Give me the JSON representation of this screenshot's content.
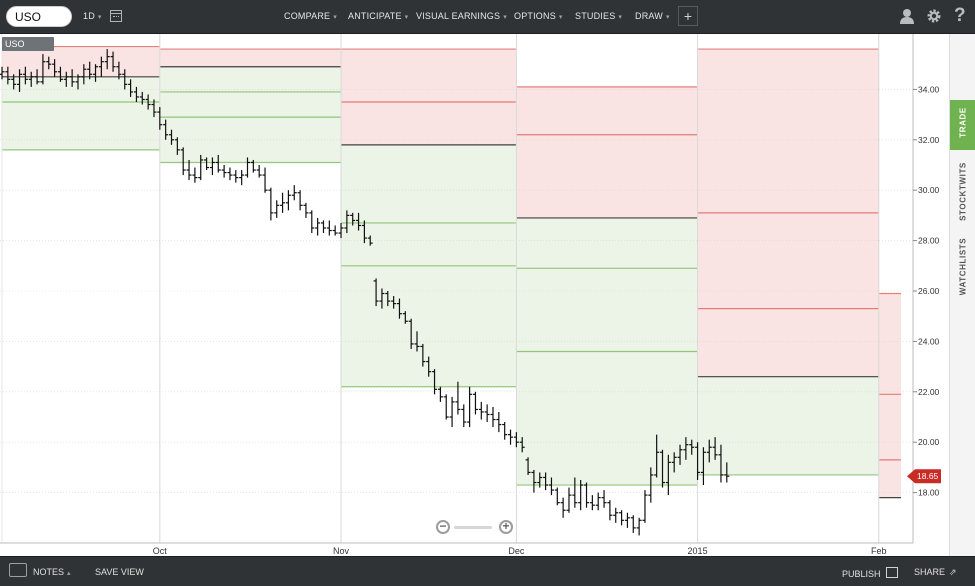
{
  "toolbar": {
    "symbol": "USO",
    "interval": "1D",
    "menu": [
      "COMPARE",
      "ANTICIPATE",
      "VISUAL EARNINGS",
      "OPTIONS",
      "STUDIES",
      "DRAW"
    ]
  },
  "sidebar": {
    "tabs": [
      "TRADE",
      "STOCKTWITS",
      "WATCHLISTS"
    ]
  },
  "bottombar": {
    "notes": "NOTES",
    "save_view": "SAVE VIEW",
    "publish": "PUBLISH",
    "share": "SHARE"
  },
  "colors": {
    "accent_green": "#6fb24f",
    "price_tag": "#c92b25",
    "bearish": "#d9534f",
    "bullish": "#6fb24f"
  },
  "chart_data": {
    "type": "ohlc",
    "symbol_label": "USO",
    "last_price": "18.65",
    "y_ticks": [
      "18.00",
      "20.00",
      "22.00",
      "24.00",
      "26.00",
      "28.00",
      "30.00",
      "32.00",
      "34.00"
    ],
    "ylim": [
      16.0,
      36.0
    ],
    "x_ticks": [
      {
        "label": "Oct",
        "day": 18
      },
      {
        "label": "Nov",
        "day": 49
      },
      {
        "label": "Dec",
        "day": 79
      },
      {
        "label": "2015",
        "day": 110
      },
      {
        "label": "Feb",
        "day": 141
      }
    ],
    "xlim": [
      -9,
      146
    ],
    "anticipate_bands": [
      {
        "start": -9,
        "end": 18,
        "lines": [
          {
            "v": 35.7,
            "k": "r"
          },
          {
            "v": 34.5,
            "k": "k"
          },
          {
            "v": 33.5,
            "k": "g"
          },
          {
            "v": 31.6,
            "k": "g"
          }
        ]
      },
      {
        "start": 18,
        "end": 49,
        "lines": [
          {
            "v": 35.6,
            "k": "r"
          },
          {
            "v": 34.9,
            "k": "k"
          },
          {
            "v": 33.9,
            "k": "g"
          },
          {
            "v": 32.9,
            "k": "g"
          },
          {
            "v": 31.1,
            "k": "g"
          }
        ]
      },
      {
        "start": 49,
        "end": 79,
        "lines": [
          {
            "v": 35.6,
            "k": "r"
          },
          {
            "v": 33.5,
            "k": "r"
          },
          {
            "v": 31.8,
            "k": "k"
          },
          {
            "v": 28.7,
            "k": "g"
          },
          {
            "v": 27.0,
            "k": "g"
          },
          {
            "v": 22.2,
            "k": "g"
          }
        ]
      },
      {
        "start": 79,
        "end": 110,
        "lines": [
          {
            "v": 34.1,
            "k": "r"
          },
          {
            "v": 32.2,
            "k": "r"
          },
          {
            "v": 28.9,
            "k": "k"
          },
          {
            "v": 26.9,
            "k": "g"
          },
          {
            "v": 23.6,
            "k": "g"
          },
          {
            "v": 18.3,
            "k": "g"
          }
        ]
      },
      {
        "start": 110,
        "end": 141,
        "lines": [
          {
            "v": 35.6,
            "k": "r"
          },
          {
            "v": 29.1,
            "k": "r"
          },
          {
            "v": 25.3,
            "k": "r"
          },
          {
            "v": 22.6,
            "k": "k"
          },
          {
            "v": 18.7,
            "k": "g"
          }
        ]
      },
      {
        "start": 141,
        "end": 161,
        "lines": [
          {
            "v": 25.9,
            "k": "r"
          },
          {
            "v": 21.9,
            "k": "r"
          },
          {
            "v": 19.3,
            "k": "r"
          },
          {
            "v": 17.8,
            "k": "k"
          }
        ]
      }
    ],
    "series": [
      {
        "name": "USO",
        "points": [
          [
            -9,
            34.6,
            34.9,
            34.4,
            34.7
          ],
          [
            -8,
            34.7,
            34.9,
            34.2,
            34.4
          ],
          [
            -7,
            34.4,
            34.6,
            34.0,
            34.2
          ],
          [
            -6,
            34.2,
            34.8,
            33.9,
            34.6
          ],
          [
            -5,
            34.6,
            34.9,
            34.2,
            34.4
          ],
          [
            -4,
            34.4,
            34.7,
            34.1,
            34.5
          ],
          [
            -3,
            34.5,
            34.8,
            34.2,
            34.3
          ],
          [
            -2,
            34.3,
            35.4,
            34.2,
            35.1
          ],
          [
            -1,
            35.1,
            35.3,
            34.8,
            35.0
          ],
          [
            0,
            35.0,
            35.2,
            34.5,
            34.7
          ],
          [
            1,
            34.7,
            34.9,
            34.3,
            34.4
          ],
          [
            2,
            34.4,
            34.7,
            34.1,
            34.5
          ],
          [
            3,
            34.5,
            34.8,
            34.1,
            34.3
          ],
          [
            4,
            34.3,
            34.6,
            34.0,
            34.5
          ],
          [
            5,
            34.5,
            35.0,
            34.2,
            34.8
          ],
          [
            6,
            34.8,
            35.1,
            34.4,
            34.6
          ],
          [
            7,
            34.6,
            35.0,
            34.3,
            34.9
          ],
          [
            8,
            34.9,
            35.3,
            34.5,
            35.1
          ],
          [
            9,
            35.1,
            35.6,
            34.8,
            35.3
          ],
          [
            10,
            35.3,
            35.5,
            34.7,
            34.9
          ],
          [
            11,
            34.9,
            35.1,
            34.4,
            34.6
          ],
          [
            12,
            34.6,
            34.8,
            34.0,
            34.2
          ],
          [
            13,
            34.2,
            34.4,
            33.7,
            33.9
          ],
          [
            14,
            33.9,
            34.1,
            33.5,
            33.7
          ],
          [
            15,
            33.7,
            33.9,
            33.4,
            33.6
          ],
          [
            16,
            33.6,
            33.8,
            33.2,
            33.4
          ],
          [
            17,
            33.4,
            33.6,
            32.9,
            33.1
          ],
          [
            18,
            33.1,
            33.3,
            32.4,
            32.6
          ],
          [
            19,
            32.6,
            32.8,
            32.0,
            32.2
          ],
          [
            20,
            32.2,
            32.4,
            31.8,
            32.0
          ],
          [
            21,
            32.0,
            32.1,
            31.4,
            31.6
          ],
          [
            22,
            31.6,
            31.7,
            30.6,
            30.8
          ],
          [
            23,
            30.8,
            31.2,
            30.4,
            30.6
          ],
          [
            24,
            30.6,
            30.9,
            30.3,
            30.5
          ],
          [
            25,
            30.5,
            31.4,
            30.4,
            31.2
          ],
          [
            26,
            31.2,
            31.3,
            30.8,
            30.9
          ],
          [
            27,
            30.9,
            31.3,
            30.6,
            31.1
          ],
          [
            28,
            31.1,
            31.4,
            30.7,
            30.8
          ],
          [
            29,
            30.8,
            31.0,
            30.5,
            30.7
          ],
          [
            30,
            30.7,
            30.9,
            30.4,
            30.6
          ],
          [
            31,
            30.6,
            30.8,
            30.3,
            30.5
          ],
          [
            32,
            30.5,
            30.8,
            30.2,
            30.6
          ],
          [
            33,
            30.6,
            31.3,
            30.5,
            31.1
          ],
          [
            34,
            31.1,
            31.2,
            30.7,
            30.8
          ],
          [
            35,
            30.8,
            31.0,
            30.5,
            30.6
          ],
          [
            36,
            30.6,
            30.9,
            29.9,
            30.0
          ],
          [
            37,
            30.0,
            30.1,
            28.8,
            29.1
          ],
          [
            38,
            29.1,
            29.6,
            28.9,
            29.4
          ],
          [
            39,
            29.4,
            29.9,
            29.1,
            29.5
          ],
          [
            40,
            29.5,
            30.0,
            29.2,
            29.8
          ],
          [
            41,
            29.8,
            30.2,
            29.6,
            29.9
          ],
          [
            42,
            29.9,
            30.0,
            29.2,
            29.4
          ],
          [
            43,
            29.4,
            29.5,
            28.9,
            29.1
          ],
          [
            44,
            29.1,
            29.2,
            28.3,
            28.5
          ],
          [
            45,
            28.5,
            28.9,
            28.2,
            28.7
          ],
          [
            46,
            28.7,
            28.8,
            28.3,
            28.5
          ],
          [
            47,
            28.5,
            28.8,
            28.2,
            28.4
          ],
          [
            48,
            28.4,
            28.6,
            28.2,
            28.3
          ],
          [
            49,
            28.3,
            28.7,
            28.1,
            28.5
          ],
          [
            50,
            28.5,
            29.2,
            28.3,
            29.0
          ],
          [
            51,
            29.0,
            29.1,
            28.6,
            28.8
          ],
          [
            52,
            28.8,
            29.1,
            28.4,
            28.6
          ],
          [
            53,
            28.6,
            28.8,
            27.9,
            28.1
          ],
          [
            54,
            28.1,
            28.2,
            27.8,
            27.9
          ],
          [
            55,
            26.4,
            26.5,
            25.4,
            25.6
          ],
          [
            56,
            25.6,
            26.1,
            25.3,
            25.9
          ],
          [
            57,
            25.9,
            26.0,
            25.4,
            25.6
          ],
          [
            58,
            25.6,
            25.8,
            25.3,
            25.5
          ],
          [
            59,
            25.5,
            25.7,
            24.9,
            25.1
          ],
          [
            60,
            25.1,
            25.2,
            24.7,
            24.8
          ],
          [
            61,
            24.8,
            24.9,
            23.7,
            23.9
          ],
          [
            62,
            23.9,
            24.4,
            23.6,
            23.8
          ],
          [
            63,
            23.8,
            23.9,
            23.0,
            23.2
          ],
          [
            64,
            23.2,
            23.4,
            22.6,
            22.8
          ],
          [
            65,
            22.8,
            22.9,
            21.9,
            22.1
          ],
          [
            66,
            22.1,
            22.2,
            21.6,
            21.8
          ],
          [
            67,
            21.8,
            21.9,
            20.9,
            21.0
          ],
          [
            68,
            21.0,
            21.8,
            20.6,
            21.6
          ],
          [
            69,
            21.6,
            22.4,
            21.1,
            21.3
          ],
          [
            70,
            21.3,
            21.5,
            20.6,
            20.8
          ],
          [
            71,
            20.8,
            22.2,
            20.6,
            21.9
          ],
          [
            72,
            21.9,
            22.0,
            21.1,
            21.3
          ],
          [
            73,
            21.3,
            21.6,
            20.9,
            21.2
          ],
          [
            74,
            21.2,
            21.5,
            20.8,
            21.1
          ],
          [
            75,
            21.1,
            21.4,
            20.6,
            20.9
          ],
          [
            76,
            20.9,
            21.2,
            20.4,
            20.7
          ],
          [
            77,
            20.7,
            20.8,
            20.1,
            20.3
          ],
          [
            78,
            20.3,
            20.5,
            19.9,
            20.2
          ],
          [
            79,
            20.2,
            20.4,
            19.8,
            20.0
          ],
          [
            80,
            20.0,
            20.2,
            19.6,
            19.8
          ],
          [
            81,
            19.3,
            19.4,
            18.7,
            18.8
          ],
          [
            82,
            18.8,
            18.9,
            18.0,
            18.4
          ],
          [
            83,
            18.4,
            18.8,
            18.2,
            18.6
          ],
          [
            84,
            18.6,
            18.8,
            18.1,
            18.3
          ],
          [
            85,
            18.3,
            18.6,
            17.9,
            18.1
          ],
          [
            86,
            18.1,
            18.2,
            17.5,
            17.6
          ],
          [
            87,
            17.6,
            17.8,
            17.0,
            17.3
          ],
          [
            88,
            17.3,
            18.2,
            17.2,
            17.9
          ],
          [
            89,
            17.9,
            18.6,
            17.4,
            17.6
          ],
          [
            90,
            17.6,
            18.5,
            17.3,
            18.3
          ],
          [
            91,
            18.3,
            18.4,
            17.4,
            17.6
          ],
          [
            92,
            17.6,
            17.9,
            17.3,
            17.5
          ],
          [
            93,
            17.5,
            18.0,
            17.3,
            17.8
          ],
          [
            94,
            17.8,
            18.1,
            17.4,
            17.6
          ],
          [
            95,
            17.6,
            17.7,
            16.9,
            17.1
          ],
          [
            96,
            17.1,
            17.4,
            16.8,
            17.2
          ],
          [
            97,
            17.2,
            17.3,
            16.7,
            16.9
          ],
          [
            98,
            16.9,
            17.2,
            16.6,
            17.0
          ],
          [
            99,
            17.0,
            17.1,
            16.4,
            16.6
          ],
          [
            100,
            16.6,
            17.0,
            16.3,
            16.9
          ],
          [
            101,
            16.9,
            18.1,
            16.8,
            17.9
          ],
          [
            102,
            17.9,
            19.0,
            17.6,
            18.7
          ],
          [
            103,
            18.7,
            20.3,
            18.6,
            19.6
          ],
          [
            104,
            19.6,
            19.7,
            18.2,
            18.4
          ],
          [
            105,
            18.4,
            19.5,
            17.9,
            19.2
          ],
          [
            106,
            19.2,
            19.6,
            18.8,
            19.4
          ],
          [
            107,
            19.4,
            19.9,
            19.1,
            19.7
          ],
          [
            108,
            19.7,
            20.2,
            19.3,
            19.9
          ],
          [
            109,
            19.9,
            20.1,
            19.5,
            19.8
          ],
          [
            110,
            19.8,
            20.0,
            18.5,
            18.8
          ],
          [
            111,
            18.8,
            19.8,
            18.3,
            19.6
          ],
          [
            112,
            19.6,
            20.1,
            19.2,
            19.8
          ],
          [
            113,
            19.8,
            20.2,
            19.3,
            19.5
          ],
          [
            114,
            19.5,
            19.9,
            18.4,
            18.7
          ],
          [
            115,
            18.7,
            19.2,
            18.4,
            18.65
          ]
        ]
      }
    ]
  }
}
